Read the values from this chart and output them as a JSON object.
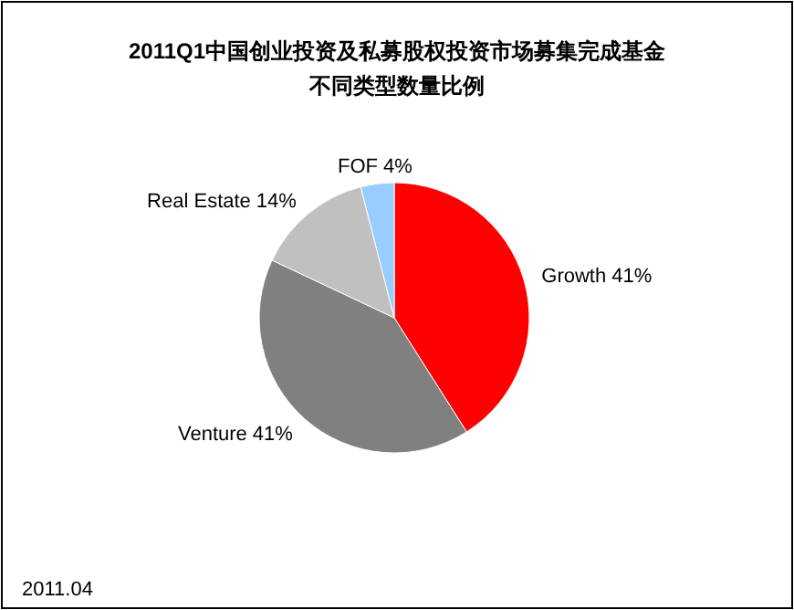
{
  "chart_data": {
    "type": "pie",
    "title": "2011Q1中国创业投资及私募股权投资市场募集完成基金",
    "subtitle": "不同类型数量比例",
    "categories": [
      "Growth",
      "Venture",
      "Real Estate",
      "FOF"
    ],
    "values": [
      41,
      41,
      14,
      4
    ],
    "value_labels": [
      "41%",
      "41%",
      "14%",
      "4%"
    ],
    "colors": [
      "#ff0000",
      "#808080",
      "#c0c0c0",
      "#99ccff"
    ],
    "annotations": [
      "2011.04"
    ]
  }
}
